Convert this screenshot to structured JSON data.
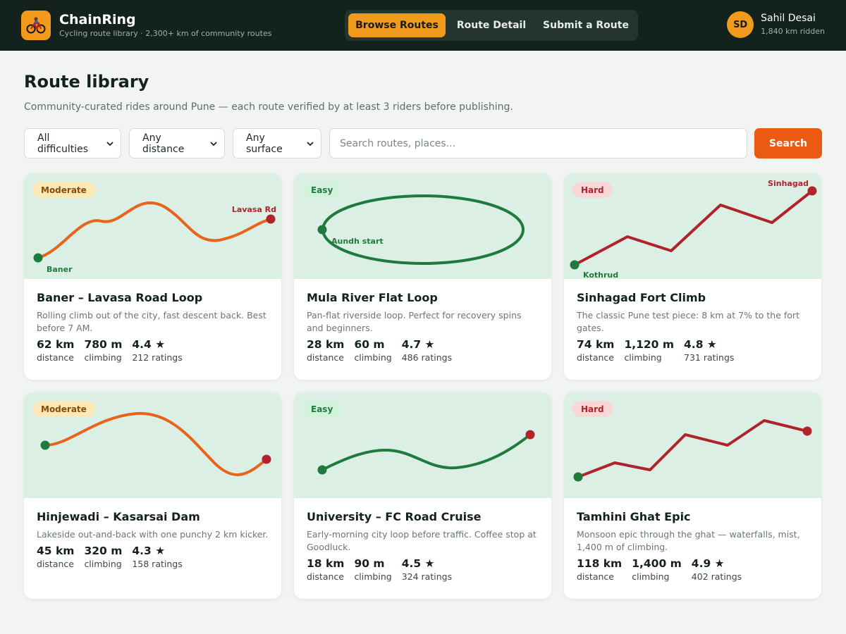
{
  "app": {
    "name": "ChainRing",
    "tagline": "Cycling route library · 2,300+ km of community routes",
    "logo_icon": "bicycle-icon"
  },
  "nav": {
    "tabs": [
      {
        "label": "Browse Routes",
        "active": true
      },
      {
        "label": "Route Detail",
        "active": false
      },
      {
        "label": "Submit a Route",
        "active": false
      }
    ]
  },
  "user": {
    "initials": "SD",
    "name": "Sahil Desai",
    "subtitle": "1,840 km ridden"
  },
  "page": {
    "title": "Route library",
    "subtitle": "Community-curated rides around Pune — each route verified by at least 3 riders before publishing."
  },
  "filters": {
    "difficulty": "All difficulties",
    "distance": "Any distance",
    "surface": "Any surface",
    "search_placeholder": "Search routes, places...",
    "search_button": "Search"
  },
  "stat_labels": {
    "distance": "distance",
    "climbing": "climbing"
  },
  "colors": {
    "accent": "#f29a1c",
    "search_button": "#ea5a12",
    "moderate_route": "#e8641a",
    "easy_route": "#1e7a3d",
    "hard_route": "#b0232a",
    "map_bg": "#dcefe5",
    "topbar": "#13221c"
  },
  "routes": [
    {
      "difficulty": "Moderate",
      "title": "Baner – Lavasa Road Loop",
      "description": "Rolling climb out of the city, fast descent back. Best before 7 AM.",
      "distance": "62 km",
      "climbing": "780 m",
      "rating": "4.4 ★",
      "ratings_count": "212 ratings",
      "start_label": "Baner",
      "end_label": "Lavasa Rd"
    },
    {
      "difficulty": "Easy",
      "title": "Mula River Flat Loop",
      "description": "Pan-flat riverside loop. Perfect for recovery spins and beginners.",
      "distance": "28 km",
      "climbing": "60 m",
      "rating": "4.7 ★",
      "ratings_count": "486 ratings",
      "start_label": "Aundh start"
    },
    {
      "difficulty": "Hard",
      "title": "Sinhagad Fort Climb",
      "description": "The classic Pune test piece: 8 km at 7% to the fort gates.",
      "distance": "74 km",
      "climbing": "1,120 m",
      "rating": "4.8 ★",
      "ratings_count": "731 ratings",
      "start_label": "Kothrud",
      "end_label": "Sinhagad"
    },
    {
      "difficulty": "Moderate",
      "title": "Hinjewadi – Kasarsai Dam",
      "description": "Lakeside out-and-back with one punchy 2 km kicker.",
      "distance": "45 km",
      "climbing": "320 m",
      "rating": "4.3 ★",
      "ratings_count": "158 ratings"
    },
    {
      "difficulty": "Easy",
      "title": "University – FC Road Cruise",
      "description": "Early-morning city loop before traffic. Coffee stop at Goodluck.",
      "distance": "18 km",
      "climbing": "90 m",
      "rating": "4.5 ★",
      "ratings_count": "324 ratings"
    },
    {
      "difficulty": "Hard",
      "title": "Tamhini Ghat Epic",
      "description": "Monsoon epic through the ghat — waterfalls, mist, 1,400 m of climbing.",
      "distance": "118 km",
      "climbing": "1,400 m",
      "rating": "4.9 ★",
      "ratings_count": "402 ratings"
    }
  ]
}
